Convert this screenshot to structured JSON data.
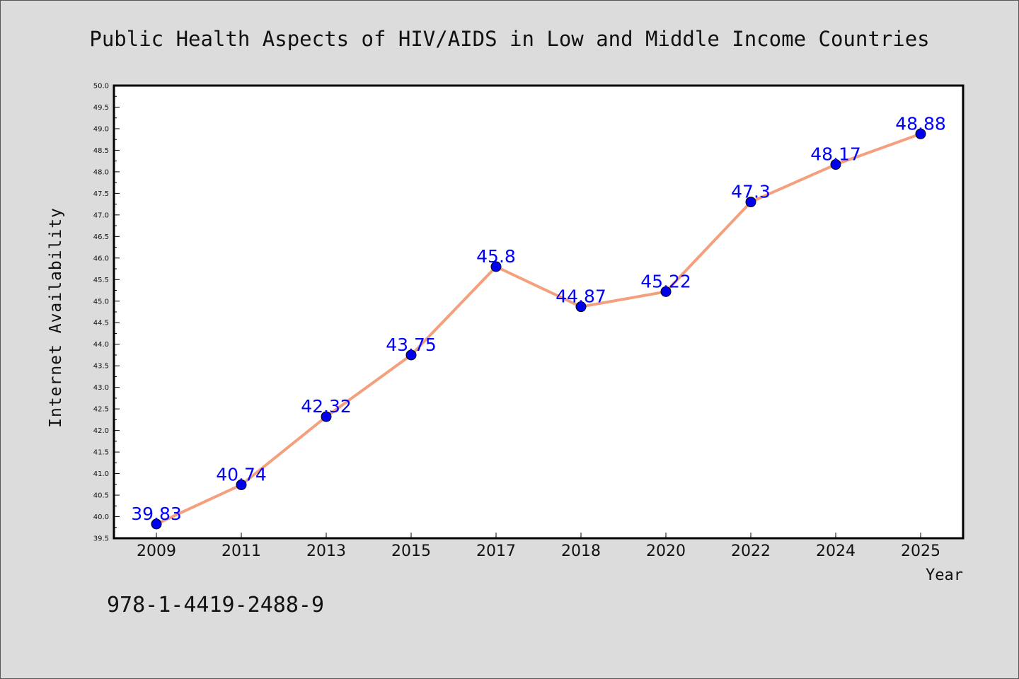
{
  "footer_text": "978-1-4419-2488-9",
  "chart_data": {
    "type": "line",
    "title": "Public Health Aspects of HIV/AIDS in Low and Middle Income Countries",
    "xlabel": "Year",
    "ylabel": "Internet Availability",
    "categories": [
      "2009",
      "2011",
      "2013",
      "2015",
      "2017",
      "2018",
      "2020",
      "2022",
      "2024",
      "2025"
    ],
    "series": [
      {
        "values": [
          39.83,
          40.74,
          42.32,
          43.75,
          45.8,
          44.87,
          45.22,
          47.3,
          48.17,
          48.88
        ],
        "labels": [
          "39.83",
          "40.74",
          "42.32",
          "43.75",
          "45.8",
          "44.87",
          "45.22",
          "47.3",
          "48.17",
          "48.88"
        ],
        "line_color": "#f4a07f",
        "marker_color": "#0000ee"
      }
    ],
    "ylim": [
      39.5,
      50.0
    ],
    "yticks": [
      "39.5",
      "40.0",
      "40.5",
      "41.0",
      "41.5",
      "42.0",
      "42.5",
      "43.0",
      "43.5",
      "44.0",
      "44.5",
      "45.0",
      "45.5",
      "46.0",
      "46.5",
      "47.0",
      "47.5",
      "48.0",
      "48.5",
      "49.0",
      "49.5",
      "50.0"
    ],
    "grid": false,
    "label_color": "#0000ff"
  }
}
